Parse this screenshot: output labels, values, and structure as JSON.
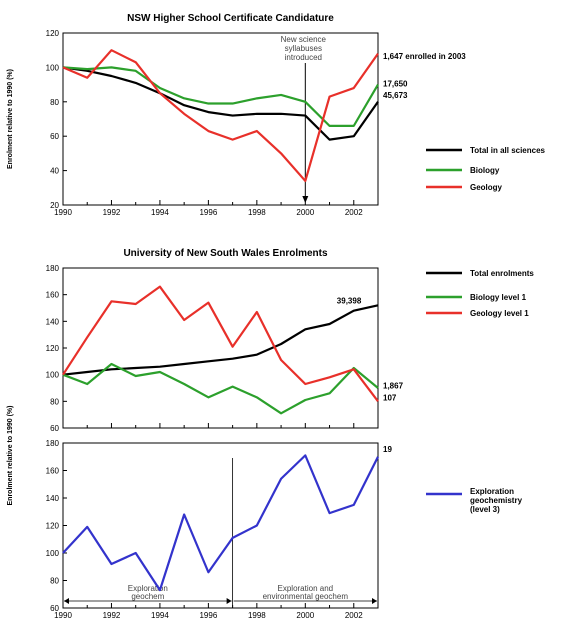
{
  "chart_data": [
    {
      "type": "line",
      "title": "NSW Higher School Certificate Candidature",
      "ylabel": "Enrolment relative to 1990 (%)",
      "xlabel": "",
      "x": [
        1990,
        1991,
        1992,
        1993,
        1994,
        1995,
        1996,
        1997,
        1998,
        1999,
        2000,
        2001,
        2002,
        2003
      ],
      "xticks": [
        1990,
        1992,
        1994,
        1996,
        1998,
        2000,
        2002
      ],
      "ylim": [
        20,
        120
      ],
      "yticks": [
        20,
        40,
        60,
        80,
        100,
        120
      ],
      "series": [
        {
          "name": "Total in all sciences",
          "color": "#000000",
          "values": [
            100,
            98,
            95,
            91,
            85,
            78,
            74,
            72,
            73,
            73,
            72,
            58,
            60,
            80
          ]
        },
        {
          "name": "Biology",
          "color": "#2ca02c",
          "values": [
            100,
            99,
            100,
            98,
            88,
            82,
            79,
            79,
            82,
            84,
            80,
            66,
            66,
            90
          ]
        },
        {
          "name": "Geology",
          "color": "#e8302a",
          "values": [
            100,
            94,
            110,
            103,
            85,
            73,
            63,
            58,
            63,
            50,
            34,
            83,
            88,
            108
          ]
        }
      ],
      "annotations": [
        {
          "text": "1,647 enrolled in 2003",
          "series": 2
        },
        {
          "text": "17,650",
          "series": 1
        },
        {
          "text": "45,673",
          "series": 0
        }
      ],
      "marker": {
        "x": 2000,
        "label": [
          "New science",
          "syllabuses",
          "introduced"
        ]
      }
    },
    {
      "type": "line",
      "title": "University of New South Wales Enrolments",
      "ylabel": "Enrolment relative to 1990 (%)",
      "xlabel": "",
      "x": [
        1990,
        1991,
        1992,
        1993,
        1994,
        1995,
        1996,
        1997,
        1998,
        1999,
        2000,
        2001,
        2002,
        2003
      ],
      "ylim": [
        60,
        180
      ],
      "yticks": [
        60,
        80,
        100,
        120,
        140,
        160,
        180
      ],
      "series": [
        {
          "name": "Total enrolments",
          "color": "#000000",
          "values": [
            100,
            102,
            104,
            105,
            106,
            108,
            110,
            112,
            115,
            123,
            134,
            138,
            148,
            152
          ]
        },
        {
          "name": "Biology level 1",
          "color": "#2ca02c",
          "values": [
            100,
            93,
            108,
            99,
            102,
            93,
            83,
            91,
            83,
            71,
            81,
            86,
            105,
            90
          ]
        },
        {
          "name": "Geology level 1",
          "color": "#e8302a",
          "values": [
            100,
            128,
            155,
            153,
            166,
            141,
            154,
            121,
            147,
            111,
            93,
            98,
            104,
            80
          ]
        }
      ],
      "annotations": [
        {
          "text": "39,398",
          "series": 0
        },
        {
          "text": "1,867",
          "series": 1
        },
        {
          "text": "107",
          "series": 2
        }
      ]
    },
    {
      "type": "line",
      "title": "",
      "ylabel": "Enrolment relative to 1990 (%)",
      "xlabel": "",
      "x": [
        1990,
        1991,
        1992,
        1993,
        1994,
        1995,
        1996,
        1997,
        1998,
        1999,
        2000,
        2001,
        2002,
        2003
      ],
      "xticks": [
        1990,
        1992,
        1994,
        1996,
        1998,
        2000,
        2002
      ],
      "ylim": [
        60,
        180
      ],
      "yticks": [
        60,
        80,
        100,
        120,
        140,
        160,
        180
      ],
      "series": [
        {
          "name": "Exploration geochemistry (level 3)",
          "color": "#3333cc",
          "values": [
            100,
            119,
            92,
            100,
            73,
            128,
            86,
            111,
            120,
            154,
            171,
            129,
            135,
            170
          ]
        }
      ],
      "annotations": [
        {
          "text": "19",
          "series": 0
        }
      ],
      "marker": {
        "x": 1997
      },
      "periods": [
        {
          "label": [
            "Exploration",
            "geochem"
          ],
          "from": 1990,
          "to": 1997
        },
        {
          "label": [
            "Exploration and",
            "environmental geochem"
          ],
          "from": 1997,
          "to": 2003
        }
      ]
    }
  ]
}
